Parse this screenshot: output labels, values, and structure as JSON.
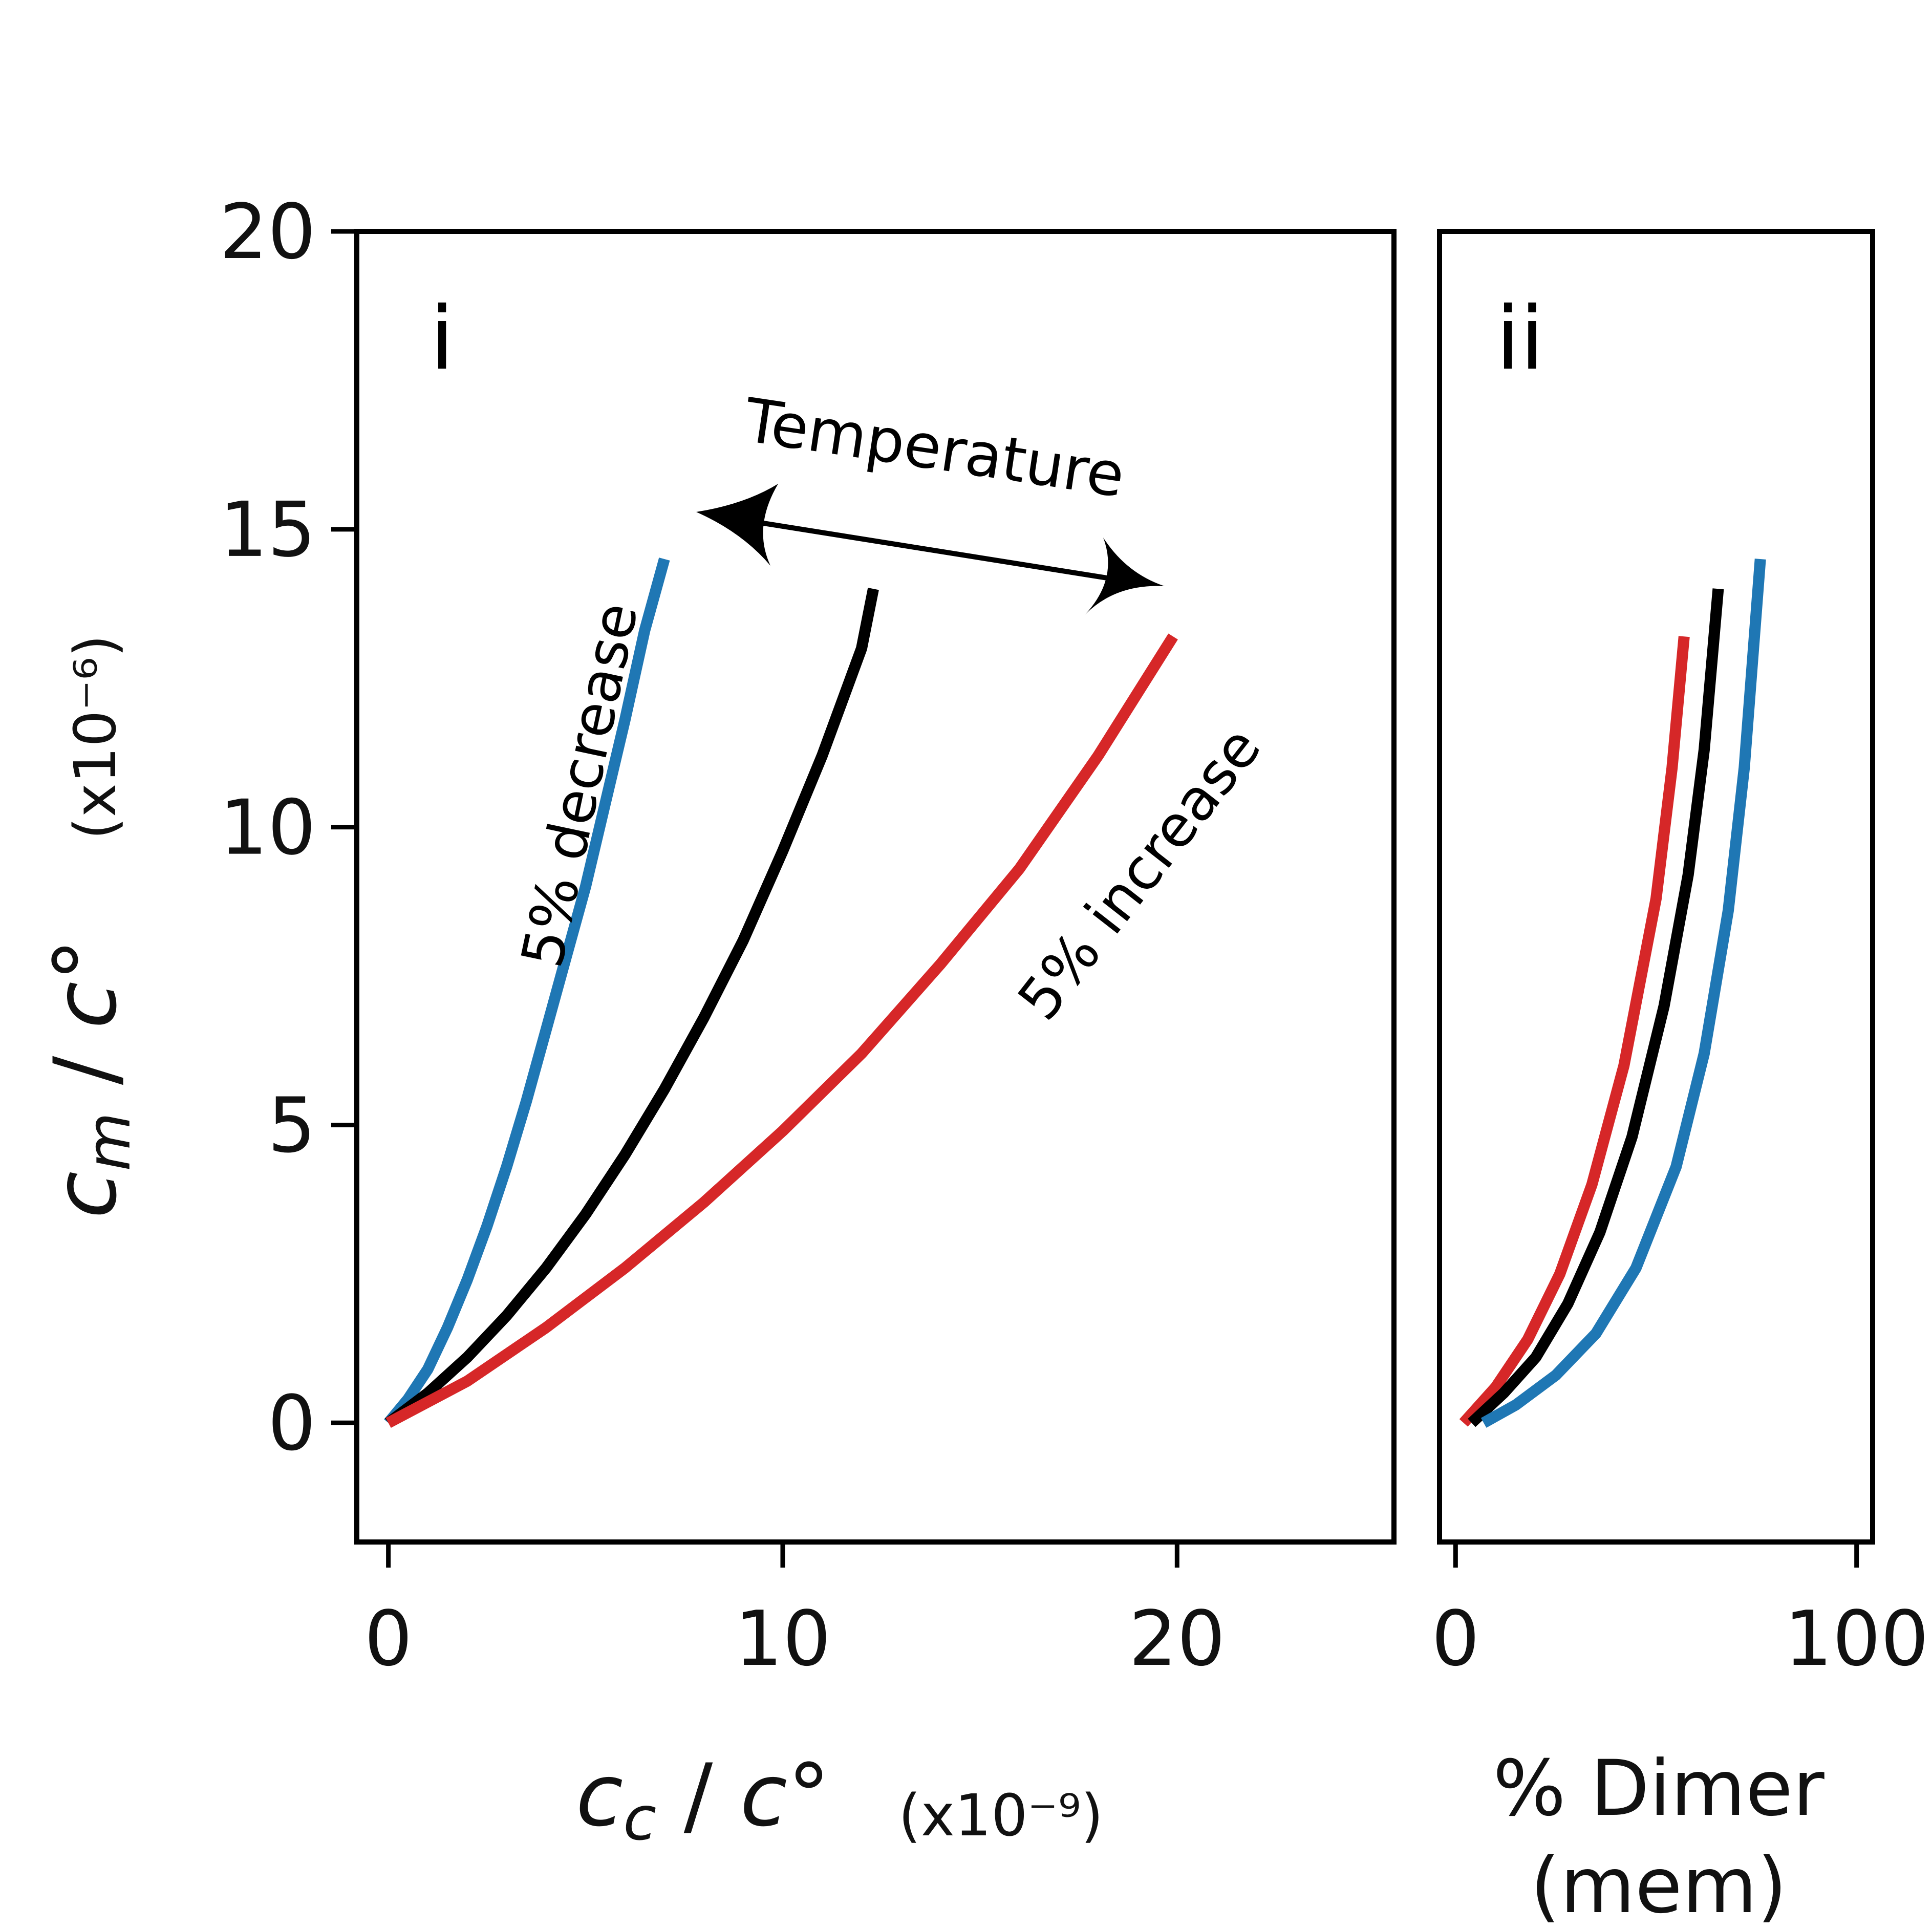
{
  "chart_data": [
    {
      "type": "line",
      "panel_label": "i",
      "xlabel": "c_c / c°",
      "xlabel_scale": "(x10⁻⁹)",
      "ylabel": "c_m / c°",
      "ylabel_scale": "(x10⁻⁶)",
      "xlim": [
        -0.8,
        25.5
      ],
      "ylim": [
        -2,
        20
      ],
      "xticks": [
        0,
        10,
        20
      ],
      "yticks": [
        0,
        5,
        10,
        15,
        20
      ],
      "grid": false,
      "series": [
        {
          "color": "#1f77b4",
          "x": [
            0,
            0.5,
            1,
            1.5,
            2,
            2.5,
            3,
            3.5,
            4,
            4.5,
            5,
            5.5,
            6,
            6.5,
            7
          ],
          "y": [
            0,
            0.4,
            0.9,
            1.6,
            2.4,
            3.3,
            4.3,
            5.4,
            6.6,
            7.8,
            9.0,
            10.4,
            11.8,
            13.3,
            14.5
          ]
        },
        {
          "color": "#000000",
          "x": [
            0,
            1,
            2,
            3,
            4,
            5,
            6,
            7,
            8,
            9,
            10,
            11,
            12,
            12.3
          ],
          "y": [
            0,
            0.5,
            1.1,
            1.8,
            2.6,
            3.5,
            4.5,
            5.6,
            6.8,
            8.1,
            9.6,
            11.2,
            13.0,
            14.0
          ]
        },
        {
          "color": "#d62728",
          "x": [
            0,
            2,
            4,
            6,
            8,
            10,
            12,
            14,
            16,
            18,
            19.9
          ],
          "y": [
            0,
            0.7,
            1.6,
            2.6,
            3.7,
            4.9,
            6.2,
            7.7,
            9.3,
            11.2,
            13.2
          ]
        }
      ],
      "annotations": [
        {
          "text": "Temperature"
        },
        {
          "text": "5% decrease"
        },
        {
          "text": "5% increase"
        }
      ]
    },
    {
      "type": "line",
      "panel_label": "ii",
      "xlabel": "% Dimer",
      "xlabel_line2": "(mem)",
      "xlim": [
        -4,
        104
      ],
      "ylim": [
        -2,
        20
      ],
      "xticks": [
        0,
        100
      ],
      "grid": false,
      "series": [
        {
          "color": "#d62728",
          "x": [
            2,
            10,
            18,
            26,
            34,
            42,
            50,
            54,
            57
          ],
          "y": [
            0,
            0.6,
            1.4,
            2.5,
            4.0,
            6.0,
            8.8,
            11.0,
            13.2
          ]
        },
        {
          "color": "#000000",
          "x": [
            4,
            12,
            20,
            28,
            36,
            44,
            52,
            58,
            62,
            65.5
          ],
          "y": [
            0,
            0.5,
            1.1,
            2.0,
            3.2,
            4.8,
            7.0,
            9.2,
            11.3,
            14.0
          ]
        },
        {
          "color": "#1f77b4",
          "x": [
            7,
            15,
            25,
            35,
            45,
            55,
            62,
            68,
            72,
            76
          ],
          "y": [
            0,
            0.3,
            0.8,
            1.5,
            2.6,
            4.3,
            6.2,
            8.6,
            11.0,
            14.5
          ]
        }
      ]
    }
  ]
}
